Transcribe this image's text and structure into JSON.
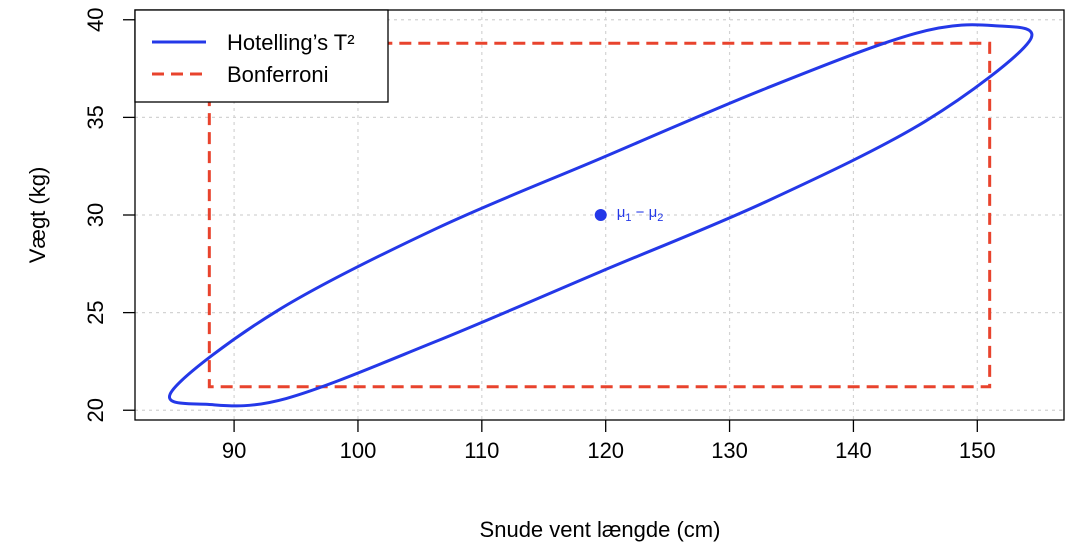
{
  "chart_data": {
    "type": "line",
    "title": "",
    "xlabel": "Snude vent længde (cm)",
    "ylabel": "Vægt (kg)",
    "xlim": [
      82,
      157
    ],
    "ylim": [
      19.5,
      40.5
    ],
    "x_ticks": [
      90,
      100,
      110,
      120,
      130,
      140,
      150
    ],
    "y_ticks": [
      20,
      25,
      30,
      35,
      40
    ],
    "x_tick_labels": [
      "90",
      "100",
      "110",
      "120",
      "130",
      "140",
      "150"
    ],
    "y_tick_labels": [
      "20",
      "25",
      "30",
      "35",
      "40"
    ],
    "grid": true,
    "legend": {
      "placement": "top-left",
      "entries": [
        {
          "label": "Hotelling’s T²",
          "color": "#2438e8",
          "style": "solid"
        },
        {
          "label": "Bonferroni",
          "color": "#e8432d",
          "style": "dashed"
        }
      ]
    },
    "series": [
      {
        "name": "Hotelling’s T²",
        "shape": "ellipse",
        "color": "#2438e8",
        "points": [
          [
            154.2,
            38.9
          ],
          [
            151.3,
            39.7
          ],
          [
            145.0,
            39.3
          ],
          [
            133.0,
            36.5
          ],
          [
            119.6,
            32.9
          ],
          [
            106.3,
            29.3
          ],
          [
            93.5,
            25.1
          ],
          [
            85.0,
            21.0
          ],
          [
            87.9,
            20.3
          ],
          [
            94.2,
            20.6
          ],
          [
            106.2,
            23.5
          ],
          [
            119.6,
            27.1
          ],
          [
            133.0,
            30.7
          ],
          [
            145.8,
            34.8
          ],
          [
            154.2,
            38.9
          ]
        ]
      },
      {
        "name": "Bonferroni",
        "shape": "rectangle",
        "color": "#e8432d",
        "x_range": [
          88.0,
          151.0
        ],
        "y_range": [
          21.2,
          38.8
        ]
      }
    ],
    "center_point": {
      "x": 119.6,
      "y": 30.0,
      "label_main": "μ",
      "sub1": "1",
      "sep": " − ",
      "label_main2": "μ",
      "sub2": "2",
      "color": "#2438e8"
    }
  }
}
